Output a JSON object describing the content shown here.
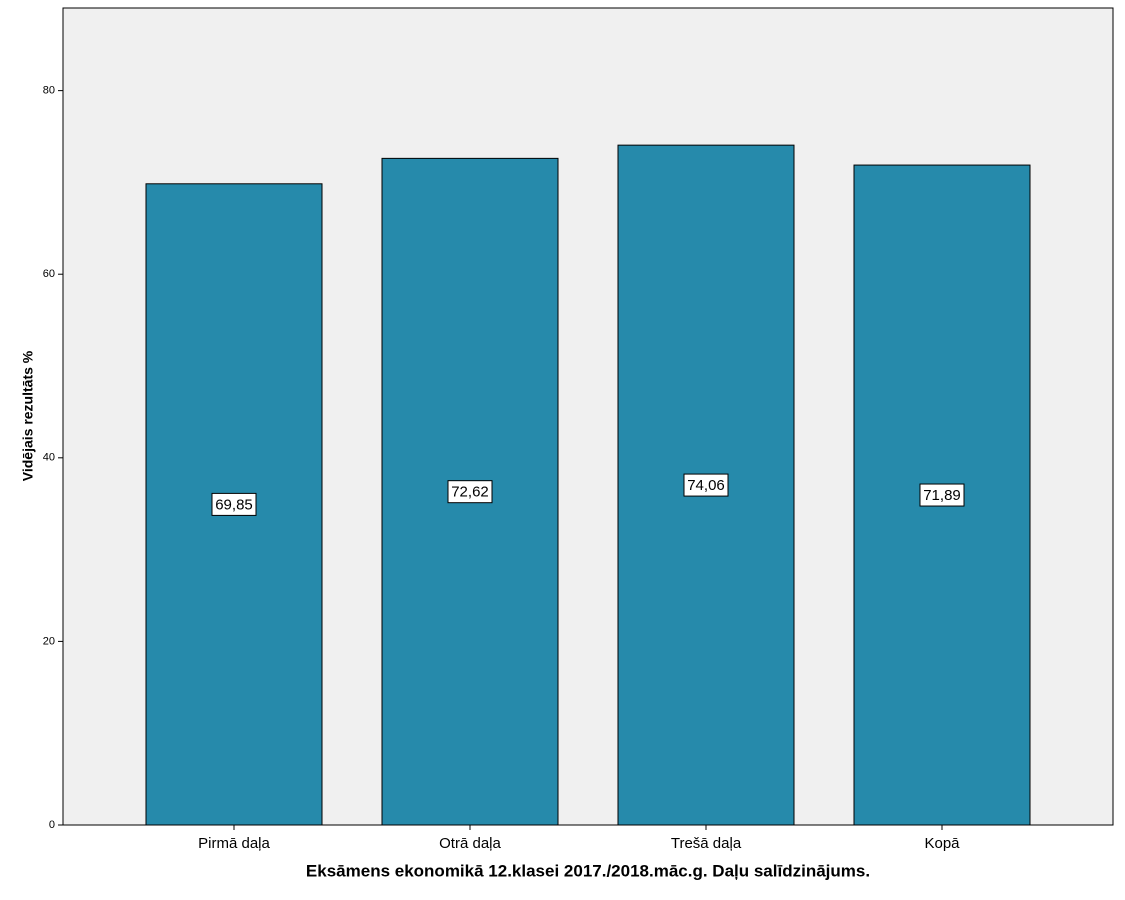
{
  "chart_data": {
    "type": "bar",
    "title": "Eksāmens ekonomikā 12.klasei 2017./2018.māc.g. Daļu salīdzinājums.",
    "y_label": "Vidējais rezultāts %",
    "categories": [
      "Pirmā daļa",
      "Otrā daļa",
      "Trešā daļa",
      "Kopā"
    ],
    "values": [
      69.85,
      72.62,
      74.06,
      71.89
    ],
    "value_labels": [
      "69,85",
      "72,62",
      "74,06",
      "71,89"
    ],
    "color": "#268aab",
    "ylim": [
      0,
      89
    ],
    "yticks": [
      0,
      20,
      40,
      60,
      80
    ],
    "grid": false
  }
}
